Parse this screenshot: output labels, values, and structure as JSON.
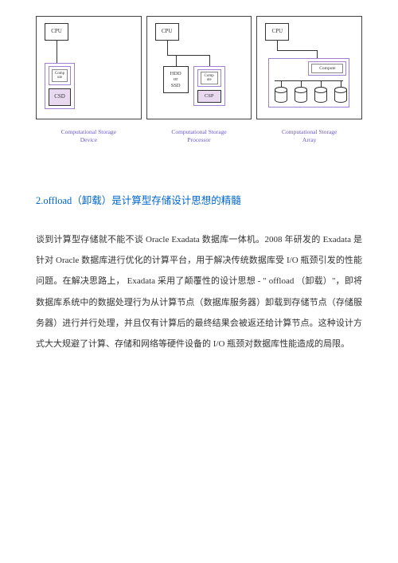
{
  "diagrams": {
    "panel1": {
      "cpu_label": "CPU",
      "inner_label": "Comp\nute",
      "csd_label": "CSD",
      "caption": "Computational Storage\nDevice"
    },
    "panel2": {
      "cpu_label": "CPU",
      "hdd_label": "HDD\nor\nSSD",
      "inner_label": "Comp\nute",
      "csp_label": "CSP",
      "caption": "Computational Storage\nProcessor"
    },
    "panel3": {
      "cpu_label": "CPU",
      "compute_label": "Compute",
      "caption": "Computational Storage\nArray"
    },
    "colors": {
      "border": "#333333",
      "purple_outline": "#a080d0",
      "caption_color": "#6a5acd",
      "background": "#ffffff"
    }
  },
  "heading": {
    "number": "2.",
    "text": "offload（卸载）是计算型存储设计思想的精髓",
    "color": "#0066cc",
    "fontsize": 12.5
  },
  "paragraph": {
    "text": "谈到计算型存储就不能不谈 Oracle Exadata 数据库一体机。2008 年研发的 Exadata 是针对 Oracle 数据库进行优化的计算平台，用于解决传统数据库受 I/O 瓶颈引发的性能问题。在解决思路上， Exadata 采用了颠覆性的设计思想 - \" offload （卸载）\"，即将数据库系统中的数据处理行为从计算节点（数据库服务器）卸载到存储节点（存储服务器）进行并行处理，并且仅有计算后的最终结果会被返还给计算节点。这种设计方式大大规避了计算、存储和网络等硬件设备的 I/O 瓶颈对数据库性能造成的局限。",
    "fontsize": 11,
    "line_height": 2.4,
    "color": "#333333"
  }
}
